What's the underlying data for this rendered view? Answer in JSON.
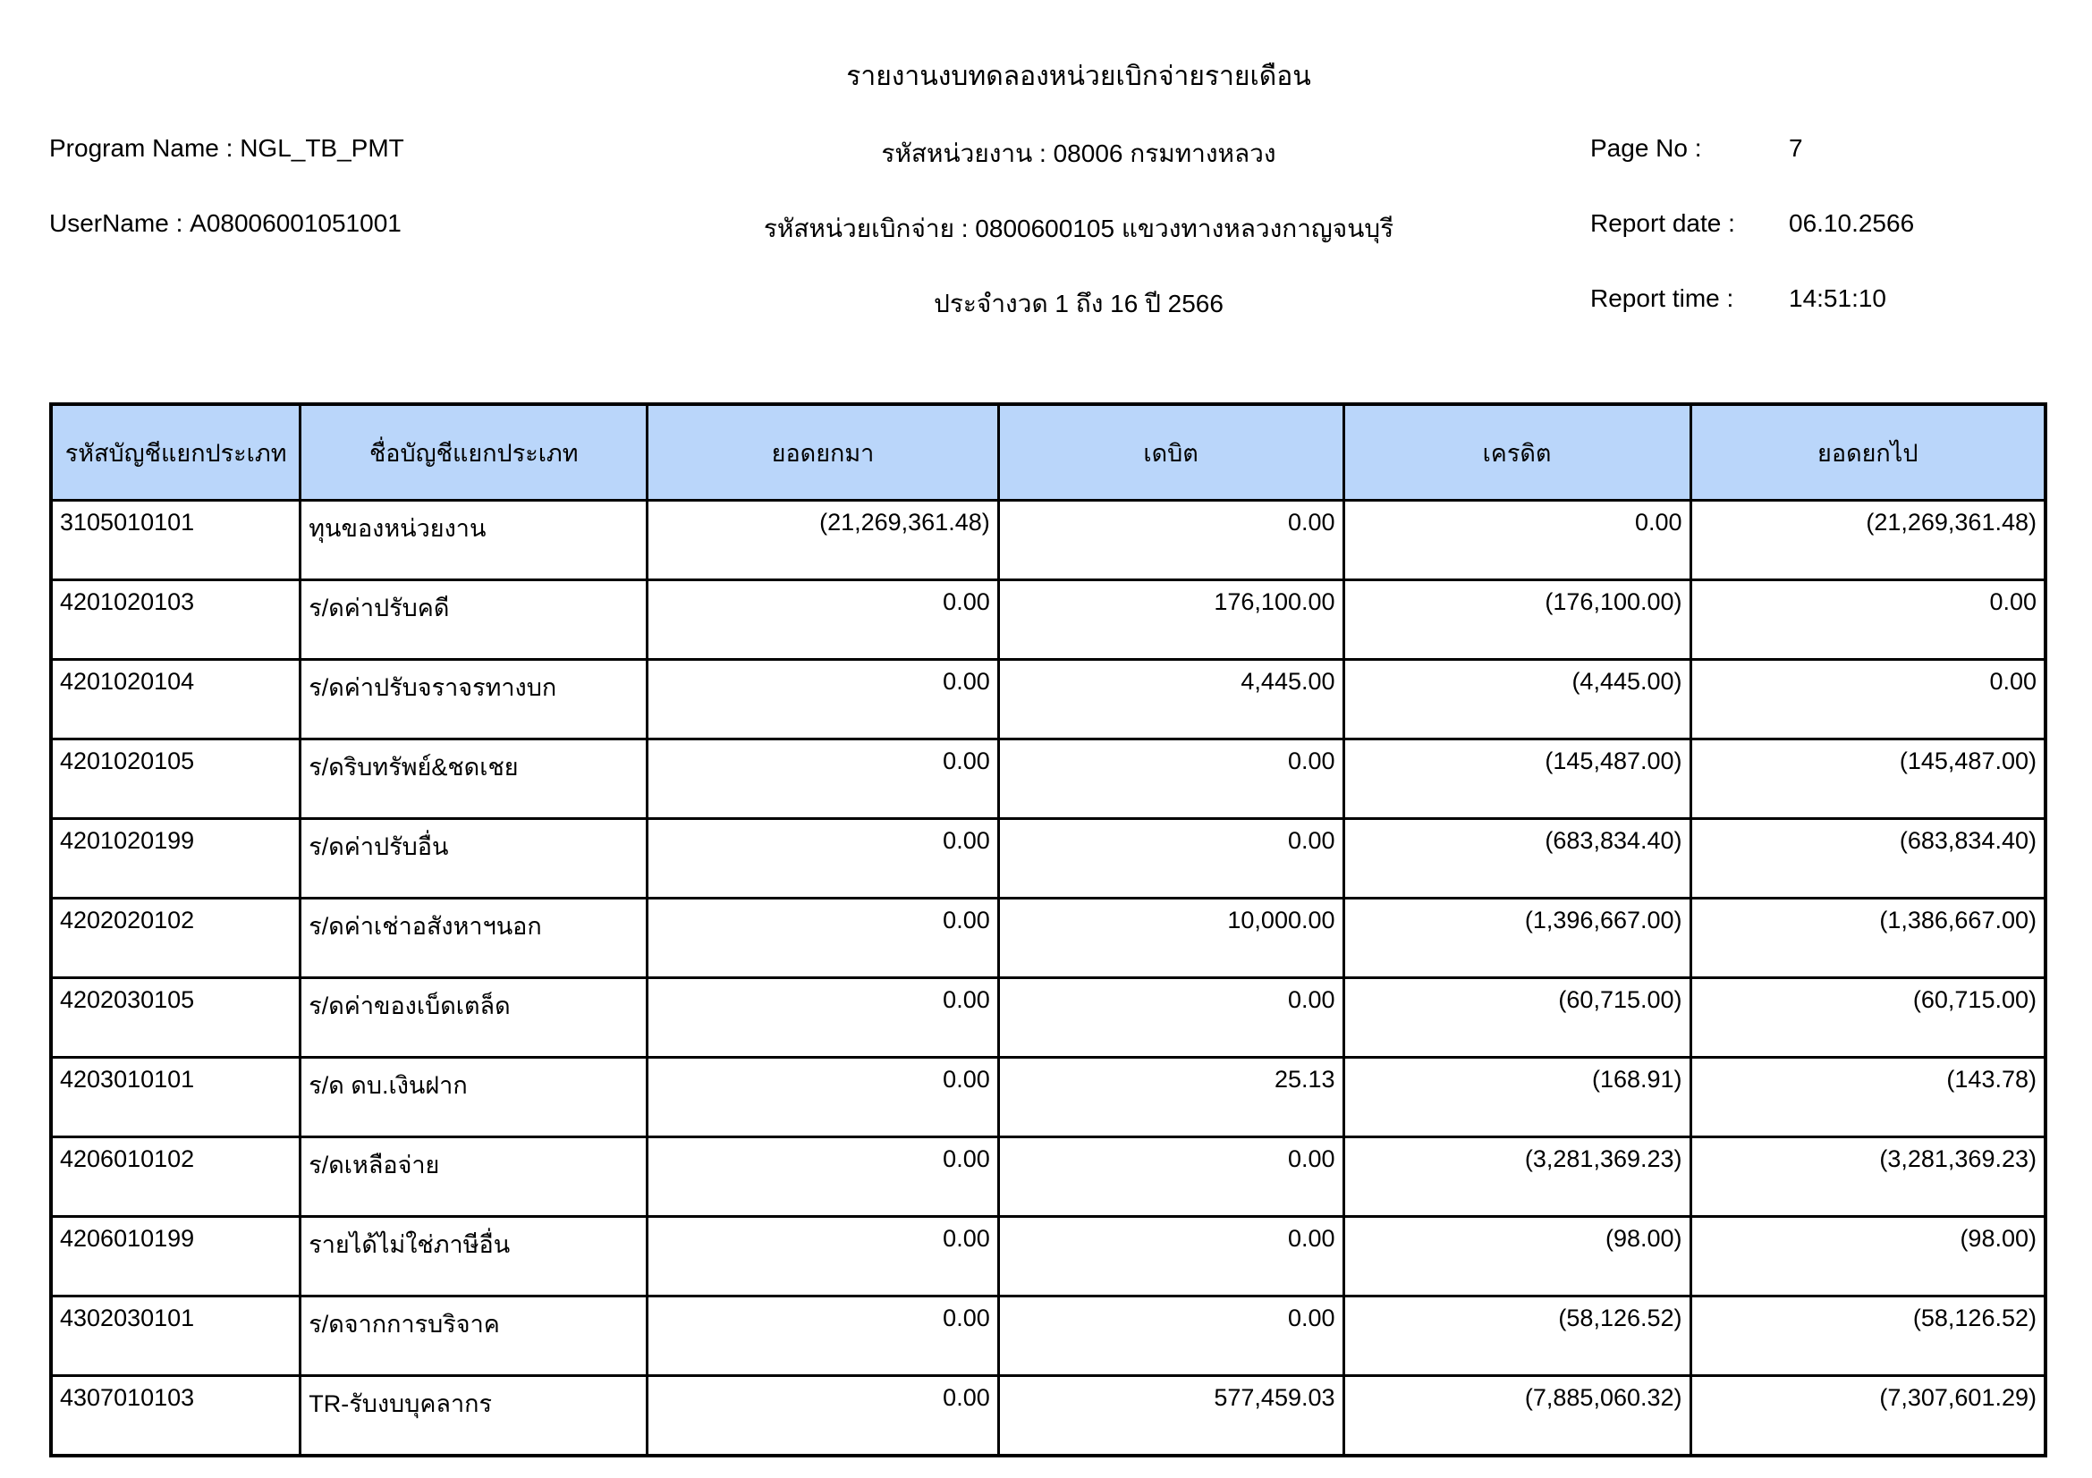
{
  "report": {
    "title": "รายงานงบทดลองหน่วยเบิกจ่ายรายเดือน",
    "program_name_label": "Program Name :",
    "program_name_value": "NGL_TB_PMT",
    "username_label": "UserName :",
    "username_value": "A08006001051001",
    "agency_line": "รหัสหน่วยงาน : 08006 กรมทางหลวง",
    "disbursement_unit_line": "รหัสหน่วยเบิกจ่าย : 0800600105 แขวงทางหลวงกาญจนบุรี",
    "period_line": "ประจำงวด 1 ถึง 16 ปี 2566",
    "page_no_label": "Page No :",
    "page_no_value": "7",
    "report_date_label": "Report date :",
    "report_date_value": "06.10.2566",
    "report_time_label": "Report time :",
    "report_time_value": "14:51:10"
  },
  "table": {
    "columns": [
      "รหัสบัญชีแยกประเภท",
      "ชื่อบัญชีแยกประเภท",
      "ยอดยกมา",
      "เดบิต",
      "เครดิต",
      "ยอดยกไป"
    ],
    "column_widths_pct": [
      12.5,
      17.4,
      17.6,
      17.3,
      17.4,
      17.8
    ],
    "rows": [
      [
        "3105010101",
        "ทุนของหน่วยงาน",
        "(21,269,361.48)",
        "0.00",
        "0.00",
        "(21,269,361.48)"
      ],
      [
        "4201020103",
        "ร/ดค่าปรับคดี",
        "0.00",
        "176,100.00",
        "(176,100.00)",
        "0.00"
      ],
      [
        "4201020104",
        "ร/ดค่าปรับจราจรทางบก",
        "0.00",
        "4,445.00",
        "(4,445.00)",
        "0.00"
      ],
      [
        "4201020105",
        "ร/ดริบทรัพย์&ชดเชย",
        "0.00",
        "0.00",
        "(145,487.00)",
        "(145,487.00)"
      ],
      [
        "4201020199",
        "ร/ดค่าปรับอื่น",
        "0.00",
        "0.00",
        "(683,834.40)",
        "(683,834.40)"
      ],
      [
        "4202020102",
        "ร/ดค่าเช่าอสังหาฯนอก",
        "0.00",
        "10,000.00",
        "(1,396,667.00)",
        "(1,386,667.00)"
      ],
      [
        "4202030105",
        "ร/ดค่าของเบ็ดเตล็ด",
        "0.00",
        "0.00",
        "(60,715.00)",
        "(60,715.00)"
      ],
      [
        "4203010101",
        "ร/ด ดบ.เงินฝาก",
        "0.00",
        "25.13",
        "(168.91)",
        "(143.78)"
      ],
      [
        "4206010102",
        "ร/ดเหลือจ่าย",
        "0.00",
        "0.00",
        "(3,281,369.23)",
        "(3,281,369.23)"
      ],
      [
        "4206010199",
        "รายได้ไม่ใช่ภาษีอื่น",
        "0.00",
        "0.00",
        "(98.00)",
        "(98.00)"
      ],
      [
        "4302030101",
        "ร/ดจากการบริจาค",
        "0.00",
        "0.00",
        "(58,126.52)",
        "(58,126.52)"
      ],
      [
        "4307010103",
        "TR-รับงบบุคลากร",
        "0.00",
        "577,459.03",
        "(7,885,060.32)",
        "(7,307,601.29)"
      ]
    ]
  },
  "colors": {
    "header_bg": "#bad6fa",
    "border": "#000000"
  }
}
